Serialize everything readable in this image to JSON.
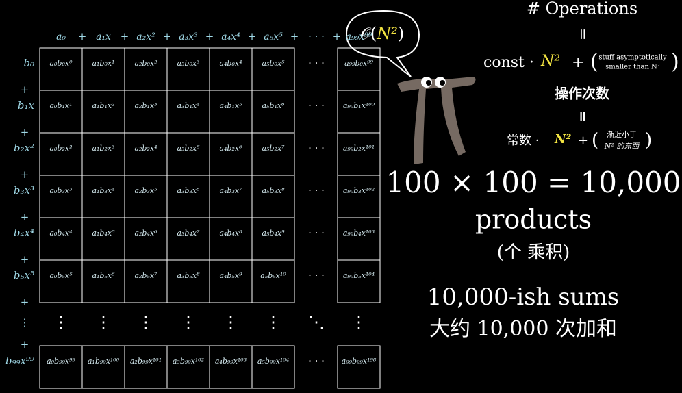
{
  "grid": {
    "header": [
      "a₀",
      "a₁x",
      "a₂x²",
      "a₃x³",
      "a₄x⁴",
      "a₅x⁵",
      "a₉₉x⁹⁹"
    ],
    "plus": "+",
    "hdots": "· · ·",
    "vdots": "⋮",
    "ddots": "⋱",
    "rows": [
      {
        "label": "b₀",
        "cells": [
          "a₀b₀x⁰",
          "a₁b₀x¹",
          "a₂b₀x²",
          "a₃b₀x³",
          "a₄b₀x⁴",
          "a₅b₀x⁵",
          "a₉₉b₀x⁹⁹"
        ]
      },
      {
        "label": "b₁x",
        "cells": [
          "a₀b₁x¹",
          "a₁b₁x²",
          "a₂b₁x³",
          "a₃b₁x⁴",
          "a₄b₁x⁵",
          "a₅b₁x⁶",
          "a₉₉b₁x¹⁰⁰"
        ]
      },
      {
        "label": "b₂x²",
        "cells": [
          "a₀b₂x²",
          "a₁b₂x³",
          "a₂b₂x⁴",
          "a₃b₂x⁵",
          "a₄b₂x⁶",
          "a₅b₂x⁷",
          "a₉₉b₂x¹⁰¹"
        ]
      },
      {
        "label": "b₃x³",
        "cells": [
          "a₀b₃x³",
          "a₁b₃x⁴",
          "a₂b₃x⁵",
          "a₃b₃x⁶",
          "a₄b₃x⁷",
          "a₅b₃x⁸",
          "a₉₉b₃x¹⁰²"
        ]
      },
      {
        "label": "b₄x⁴",
        "cells": [
          "a₀b₄x⁴",
          "a₁b₄x⁵",
          "a₂b₄x⁶",
          "a₃b₄x⁷",
          "a₄b₄x⁸",
          "a₅b₄x⁹",
          "a₉₉b₄x¹⁰³"
        ]
      },
      {
        "label": "b₅x⁵",
        "cells": [
          "a₀b₅x⁵",
          "a₁b₅x⁶",
          "a₂b₅x⁷",
          "a₃b₅x⁸",
          "a₄b₅x⁹",
          "a₅b₅x¹⁰",
          "a₉₉b₅x¹⁰⁴"
        ]
      }
    ],
    "last_row": {
      "label": "b₉₉x⁹⁹",
      "cells": [
        "a₀b₉₉x⁹⁹",
        "a₁b₉₉x¹⁰⁰",
        "a₂b₉₉x¹⁰¹",
        "a₃b₉₉x¹⁰²",
        "a₄b₉₉x¹⁰³",
        "a₅b₉₉x¹⁰⁴",
        "a₉₉b₉₉x¹⁹⁸"
      ]
    }
  },
  "bubble": {
    "open": "𝒪(",
    "n": "N²",
    "close": ")"
  },
  "operations": {
    "title": "# Operations",
    "equals": "=",
    "const": "const ·",
    "n": "N²",
    "plus": "+",
    "stuff_1": "stuff asymptotically",
    "stuff_2": "smaller than N²",
    "title_zh": "操作次数",
    "const_zh": "常数 ·",
    "stuff_zh_1": "渐近小于",
    "stuff_zh_2": "N² 的东西"
  },
  "products": {
    "equation": "100 × 100 = 10,000",
    "label": "products",
    "label_zh": "(个 乘积)"
  },
  "sums": {
    "label": "10,000-ish sums",
    "label_zh": "大约 10,000 次加和"
  }
}
